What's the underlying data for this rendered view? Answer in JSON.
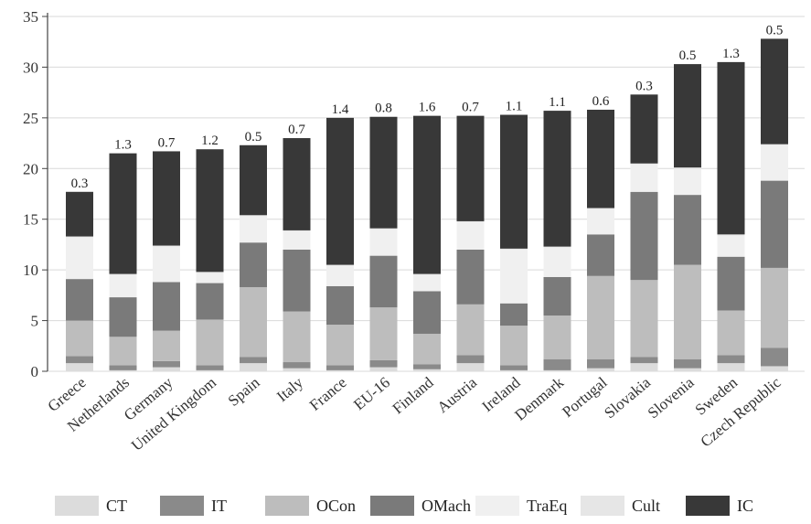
{
  "chart_data": {
    "type": "bar",
    "stacked": true,
    "orientation": "vertical",
    "title": "",
    "xlabel": "",
    "ylabel": "",
    "ylim": [
      0,
      35
    ],
    "yticks": [
      0,
      5,
      10,
      15,
      20,
      25,
      30,
      35
    ],
    "grid": "horizontal",
    "legend_position": "bottom",
    "categories": [
      "Greece",
      "Netherlands",
      "Germany",
      "United Kingdom",
      "Spain",
      "Italy",
      "France",
      "EU-16",
      "Finland",
      "Austria",
      "Ireland",
      "Denmark",
      "Portugal",
      "Slovakia",
      "Slovenia",
      "Sweden",
      "Czech Republic"
    ],
    "series": [
      {
        "name": "CT",
        "color": "#dcdcdc",
        "values": [
          0.8,
          0.1,
          0.4,
          0.1,
          0.8,
          0.3,
          0.1,
          0.4,
          0.2,
          0.8,
          0.1,
          0.1,
          0.3,
          0.8,
          0.3,
          0.8,
          0.5
        ]
      },
      {
        "name": "IT",
        "color": "#8a8a8a",
        "values": [
          0.7,
          0.5,
          0.6,
          0.5,
          0.6,
          0.6,
          0.5,
          0.7,
          0.5,
          0.8,
          0.5,
          1.1,
          0.9,
          0.6,
          0.9,
          0.8,
          1.8
        ]
      },
      {
        "name": "OCon",
        "color": "#bdbdbd",
        "values": [
          3.5,
          2.8,
          3.0,
          4.5,
          6.9,
          5.0,
          4.0,
          5.2,
          3.0,
          5.0,
          3.9,
          4.3,
          8.2,
          7.6,
          9.3,
          4.4,
          7.9
        ]
      },
      {
        "name": "OMach",
        "color": "#7a7a7a",
        "values": [
          4.1,
          3.9,
          4.8,
          3.6,
          4.4,
          6.1,
          3.8,
          5.1,
          4.2,
          5.4,
          2.2,
          3.8,
          4.1,
          8.7,
          6.9,
          5.3,
          8.6
        ]
      },
      {
        "name": "TraEq",
        "color": "#f0f0f0",
        "values": [
          4.1,
          2.2,
          3.5,
          1.0,
          2.6,
          1.8,
          2.0,
          2.6,
          1.6,
          2.7,
          5.3,
          2.9,
          2.5,
          2.7,
          2.6,
          2.1,
          3.5
        ]
      },
      {
        "name": "Cult",
        "color": "#e6e6e6",
        "values": [
          0.1,
          0.1,
          0.1,
          0.1,
          0.1,
          0.1,
          0.1,
          0.1,
          0.1,
          0.1,
          0.1,
          0.1,
          0.1,
          0.1,
          0.1,
          0.1,
          0.1
        ]
      },
      {
        "name": "IC",
        "color": "#383838",
        "values": [
          4.4,
          11.9,
          9.3,
          12.1,
          6.9,
          9.1,
          14.5,
          11.0,
          15.6,
          10.4,
          13.2,
          13.4,
          9.7,
          6.8,
          10.2,
          17.0,
          10.4
        ]
      }
    ],
    "totals": [
      17.7,
      21.5,
      21.7,
      21.9,
      22.3,
      23.0,
      25.0,
      25.1,
      25.2,
      25.2,
      25.3,
      25.7,
      25.8,
      27.3,
      30.3,
      30.5,
      32.8
    ],
    "bar_labels": [
      "0.3",
      "1.3",
      "0.7",
      "1.2",
      "0.5",
      "0.7",
      "1.4",
      "0.8",
      "1.6",
      "0.7",
      "1.1",
      "1.1",
      "0.6",
      "0.3",
      "0.5",
      "1.3",
      "0.5"
    ]
  }
}
